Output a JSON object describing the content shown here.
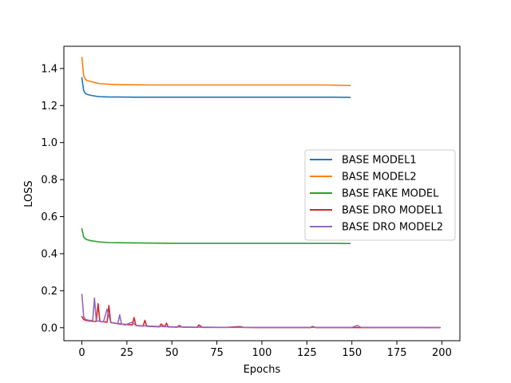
{
  "chart_data": {
    "type": "line",
    "title": "",
    "xlabel": "Epochs",
    "ylabel": "LOSS",
    "xlim": [
      -10,
      210
    ],
    "ylim": [
      -0.07,
      1.52
    ],
    "xticks": [
      0,
      25,
      50,
      75,
      100,
      125,
      150,
      175,
      200
    ],
    "yticks": [
      0.0,
      0.2,
      0.4,
      0.6,
      0.8,
      1.0,
      1.2,
      1.4
    ],
    "ytick_labels": [
      "0.0",
      "0.2",
      "0.4",
      "0.6",
      "0.8",
      "1.0",
      "1.2",
      "1.4"
    ],
    "grid": false,
    "legend_position": "center-right",
    "series": [
      {
        "name": "BASE MODEL1",
        "color": "#1f77b4",
        "x": [
          0,
          1,
          2,
          3,
          5,
          8,
          10,
          15,
          20,
          30,
          40,
          50,
          60,
          75,
          90,
          100,
          110,
          125,
          135,
          140,
          149
        ],
        "y": [
          1.35,
          1.28,
          1.265,
          1.26,
          1.255,
          1.25,
          1.248,
          1.246,
          1.246,
          1.245,
          1.245,
          1.245,
          1.245,
          1.245,
          1.245,
          1.245,
          1.245,
          1.245,
          1.245,
          1.245,
          1.244
        ]
      },
      {
        "name": "BASE MODEL2",
        "color": "#ff7f0e",
        "x": [
          0,
          1,
          2,
          3,
          5,
          8,
          10,
          15,
          20,
          30,
          40,
          50,
          60,
          75,
          90,
          100,
          110,
          125,
          135,
          140,
          149
        ],
        "y": [
          1.46,
          1.36,
          1.34,
          1.335,
          1.33,
          1.322,
          1.318,
          1.315,
          1.313,
          1.312,
          1.311,
          1.311,
          1.311,
          1.311,
          1.311,
          1.311,
          1.311,
          1.311,
          1.311,
          1.31,
          1.308
        ]
      },
      {
        "name": "BASE FAKE MODEL",
        "color": "#2ca02c",
        "x": [
          0,
          1,
          2,
          3,
          5,
          8,
          10,
          15,
          20,
          30,
          40,
          50,
          60,
          75,
          90,
          100,
          110,
          125,
          135,
          140,
          149
        ],
        "y": [
          0.535,
          0.49,
          0.48,
          0.475,
          0.47,
          0.466,
          0.463,
          0.46,
          0.459,
          0.458,
          0.457,
          0.456,
          0.456,
          0.456,
          0.456,
          0.456,
          0.456,
          0.456,
          0.456,
          0.456,
          0.455
        ]
      },
      {
        "name": "BASE DRO MODEL1",
        "color": "#d62728",
        "x": [
          0,
          1,
          2,
          4,
          6,
          8,
          9,
          10,
          12,
          14,
          15,
          16,
          18,
          20,
          24,
          28,
          29,
          30,
          32,
          34,
          35,
          36,
          38,
          40,
          43,
          44,
          46,
          47,
          48,
          50,
          53,
          54,
          56,
          60,
          64,
          65,
          67,
          70,
          80,
          88,
          90,
          100,
          110,
          120,
          127,
          128,
          130,
          140,
          150,
          155,
          160,
          170,
          180,
          190,
          199
        ],
        "y": [
          0.06,
          0.045,
          0.04,
          0.037,
          0.035,
          0.034,
          0.13,
          0.034,
          0.032,
          0.03,
          0.12,
          0.028,
          0.025,
          0.022,
          0.018,
          0.015,
          0.055,
          0.012,
          0.01,
          0.009,
          0.04,
          0.008,
          0.007,
          0.006,
          0.005,
          0.02,
          0.005,
          0.025,
          0.004,
          0.004,
          0.003,
          0.012,
          0.003,
          0.003,
          0.002,
          0.015,
          0.002,
          0.002,
          0.002,
          0.006,
          0.002,
          0.001,
          0.001,
          0.001,
          0.001,
          0.007,
          0.001,
          0.001,
          0.001,
          0.001,
          0.001,
          0.001,
          0.001,
          0.001,
          0.001
        ]
      },
      {
        "name": "BASE DRO MODEL2",
        "color": "#9467bd",
        "x": [
          0,
          1,
          2,
          4,
          6,
          7,
          8,
          10,
          12,
          14,
          16,
          18,
          20,
          21,
          22,
          24,
          28,
          30,
          35,
          40,
          45,
          50,
          55,
          60,
          70,
          80,
          90,
          100,
          110,
          120,
          130,
          140,
          150,
          153,
          155,
          160,
          170,
          180,
          190,
          199
        ],
        "y": [
          0.18,
          0.06,
          0.045,
          0.04,
          0.038,
          0.16,
          0.038,
          0.035,
          0.032,
          0.1,
          0.03,
          0.025,
          0.022,
          0.07,
          0.02,
          0.015,
          0.03,
          0.012,
          0.01,
          0.008,
          0.006,
          0.005,
          0.004,
          0.003,
          0.003,
          0.002,
          0.002,
          0.002,
          0.002,
          0.002,
          0.002,
          0.002,
          0.002,
          0.012,
          0.002,
          0.002,
          0.002,
          0.002,
          0.002,
          0.001
        ]
      }
    ]
  }
}
